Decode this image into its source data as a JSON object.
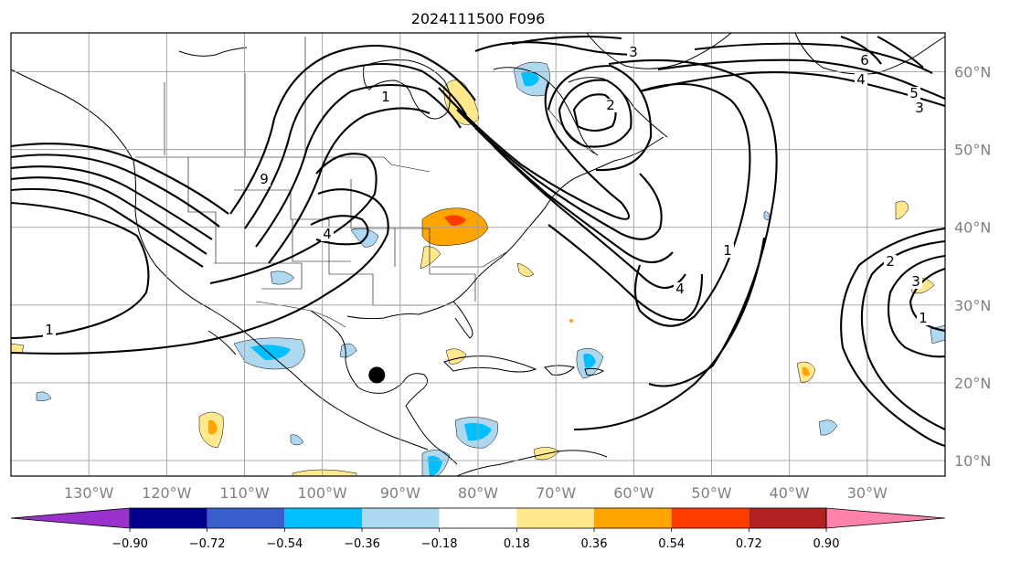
{
  "title": "2024111500 F096",
  "map": {
    "lon_range": [
      -140,
      -20
    ],
    "lat_range": [
      8,
      65
    ],
    "lon_ticks": [
      "130°W",
      "120°W",
      "110°W",
      "100°W",
      "90°W",
      "80°W",
      "70°W",
      "60°W",
      "50°W",
      "40°W",
      "30°W"
    ],
    "lat_ticks": [
      "60°N",
      "50°N",
      "40°N",
      "30°N",
      "20°N",
      "10°N"
    ],
    "grid": true,
    "marker": {
      "name": "storm-center-marker",
      "lon": -93,
      "lat": 21
    }
  },
  "contour_labels": [
    "3",
    "2",
    "4",
    "5",
    "3",
    "6",
    "1",
    "9",
    "1",
    "4",
    "1",
    "2",
    "3",
    "1",
    "4"
  ],
  "colorbar": {
    "ticks": [
      "−0.90",
      "−0.72",
      "−0.54",
      "−0.36",
      "−0.18",
      "0.18",
      "0.36",
      "0.54",
      "0.72",
      "0.90"
    ],
    "colors": [
      "#9932cc",
      "#00008b",
      "#3a5fcd",
      "#00bfff",
      "#add8f0",
      "#ffffff",
      "#ffe98c",
      "#ffa500",
      "#ff3c00",
      "#b22222",
      "#ff82ab"
    ],
    "extend": "both"
  }
}
